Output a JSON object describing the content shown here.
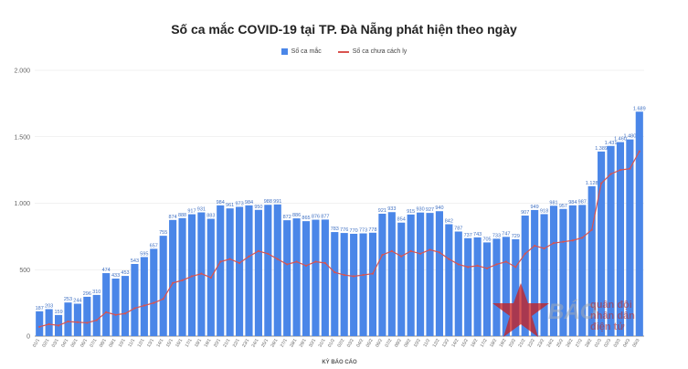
{
  "colors": {
    "bar": "#4a86e8",
    "line": "#d9534f",
    "grid": "#e4e4e4",
    "axis": "#666666"
  },
  "watermark": {
    "brand": "BÁO",
    "subtitle_lines": [
      "quân đội",
      "nhân dân",
      "điện tử"
    ]
  },
  "chart_data": {
    "type": "bar",
    "title": "Số ca mắc COVID-19 tại TP. Đà Nẵng phát hiện theo ngày",
    "xlabel": "KỲ BÁO CÁO",
    "ylabel": "",
    "ylim": [
      0,
      2000
    ],
    "yticks": [
      0,
      500,
      1000,
      1500,
      2000
    ],
    "ytick_labels": [
      "0",
      "500",
      "1.000",
      "1.500",
      "2.000"
    ],
    "grid": true,
    "legend_position": "top-center",
    "categories": [
      "01/1",
      "02/1",
      "03/1",
      "04/1",
      "05/1",
      "06/1",
      "07/1",
      "08/1",
      "09/1",
      "10/1",
      "11/1",
      "12/1",
      "13/1",
      "14/1",
      "15/1",
      "16/1",
      "17/1",
      "18/1",
      "19/1",
      "20/1",
      "21/1",
      "22/1",
      "23/1",
      "24/1",
      "25/1",
      "26/1",
      "27/1",
      "28/1",
      "29/1",
      "30/1",
      "31/1",
      "01/2",
      "02/2",
      "03/2",
      "04/2",
      "05/2",
      "06/2",
      "07/2",
      "08/2",
      "09/2",
      "10/2",
      "11/2",
      "12/2",
      "13/2",
      "14/2",
      "15/2",
      "16/2",
      "17/2",
      "18/2",
      "19/2",
      "20/2",
      "21/2",
      "22/2",
      "23/2",
      "24/2",
      "25/2",
      "26/2",
      "27/2",
      "28/2",
      "01/3",
      "02/3",
      "03/3",
      "04/3",
      "05/3"
    ],
    "series": [
      {
        "name": "Số ca mắc",
        "type": "bar",
        "values": [
          187,
          203,
          159,
          253,
          244,
          296,
          310,
          474,
          433,
          453,
          543,
          595,
          657,
          755,
          874,
          888,
          917,
          931,
          883,
          984,
          961,
          973,
          984,
          950,
          988,
          991,
          872,
          886,
          865,
          876,
          877,
          783,
          776,
          770,
          773,
          778,
          921,
          933,
          854,
          915,
          930,
          927,
          940,
          842,
          787,
          737,
          743,
          705,
          733,
          747,
          729,
          907,
          949,
          918,
          981,
          957,
          984,
          987,
          1128,
          1389,
          1431,
          1460,
          1480,
          1689
        ]
      },
      {
        "name": "Số ca chưa cách ly",
        "type": "line",
        "values": [
          70,
          90,
          80,
          110,
          105,
          100,
          120,
          180,
          160,
          170,
          210,
          230,
          250,
          280,
          400,
          420,
          450,
          470,
          440,
          560,
          580,
          550,
          600,
          640,
          620,
          580,
          540,
          560,
          530,
          560,
          550,
          480,
          460,
          450,
          460,
          470,
          610,
          640,
          600,
          640,
          620,
          650,
          630,
          580,
          540,
          520,
          530,
          510,
          540,
          560,
          520,
          620,
          680,
          660,
          700,
          710,
          720,
          740,
          800,
          1150,
          1220,
          1250,
          1260,
          1390
        ],
        "labels_shown": false
      }
    ]
  }
}
